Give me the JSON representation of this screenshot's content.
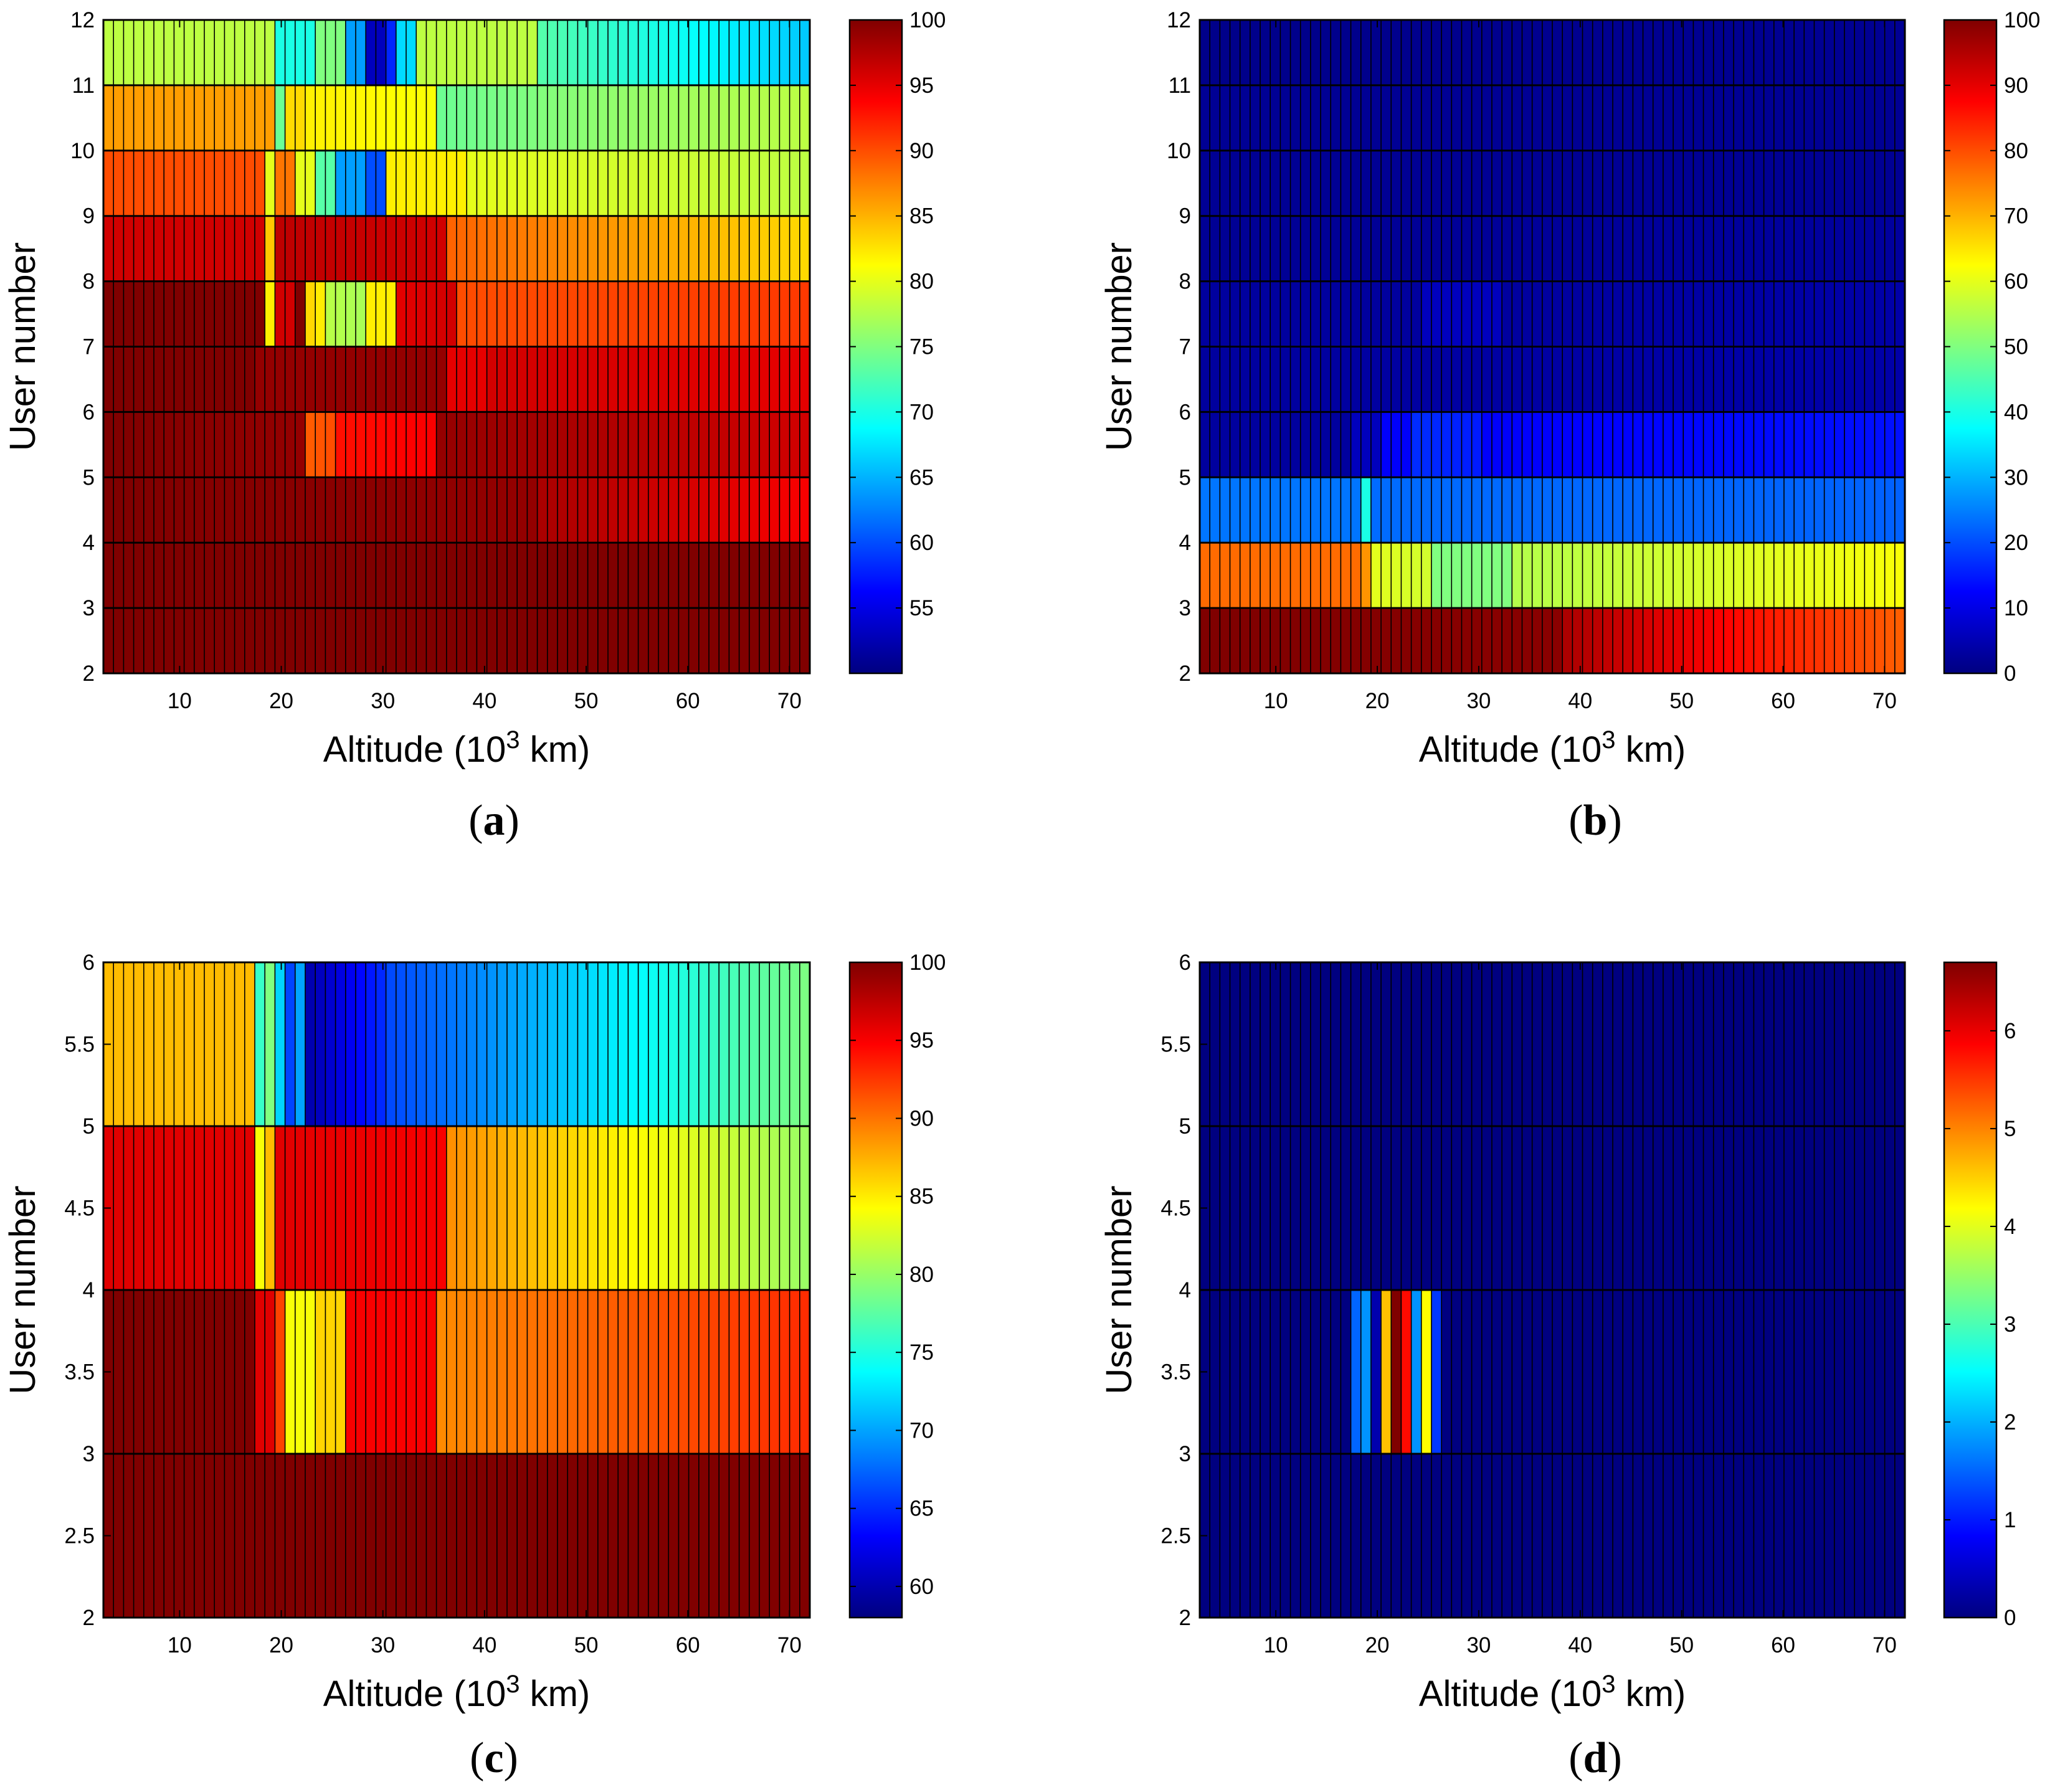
{
  "figure": {
    "caption_parts": {
      "open": "(",
      "close": ")"
    }
  },
  "chart_data": [
    {
      "id": "a",
      "panel_label": "a",
      "type": "heatmap",
      "xlabel": "Altitude (10",
      "xlabel_sup": "3",
      "xlabel_tail": " km)",
      "ylabel": "User number",
      "xlim": [
        2.5,
        72
      ],
      "ylim": [
        2,
        12
      ],
      "xticks": [
        10,
        20,
        30,
        40,
        50,
        60,
        70
      ],
      "yticks": [
        2,
        3,
        4,
        5,
        6,
        7,
        8,
        9,
        10,
        11,
        12
      ],
      "ytick_labels": [
        "2",
        "3",
        "4",
        "5",
        "6",
        "7",
        "8",
        "9",
        "10",
        "11",
        "12"
      ],
      "row_boundaries": [
        2,
        3,
        4,
        5,
        6,
        7,
        8,
        9,
        10,
        11,
        12
      ],
      "n_columns": 70,
      "colorbar": {
        "min": 50,
        "max": 100,
        "ticks": [
          55,
          60,
          65,
          70,
          75,
          80,
          85,
          90,
          95,
          100
        ]
      },
      "rows_segments": [
        [
          [
            2.5,
            72,
            100,
            100
          ]
        ],
        [
          [
            2.5,
            72,
            100,
            100
          ]
        ],
        [
          [
            2.5,
            45,
            100,
            99
          ],
          [
            45,
            72,
            98,
            94
          ]
        ],
        [
          [
            2.5,
            22,
            100,
            99
          ],
          [
            22,
            25,
            89,
            90
          ],
          [
            25,
            35,
            93,
            94
          ],
          [
            35,
            72,
            99,
            96
          ]
        ],
        [
          [
            2.5,
            17,
            100,
            100
          ],
          [
            17,
            36,
            99,
            99
          ],
          [
            36,
            40,
            95,
            95
          ],
          [
            40,
            72,
            96,
            95
          ]
        ],
        [
          [
            2.5,
            18,
            100,
            100
          ],
          [
            18,
            19,
            82,
            82
          ],
          [
            19,
            21,
            96,
            96
          ],
          [
            21,
            22,
            100,
            100
          ],
          [
            22,
            24,
            84,
            82
          ],
          [
            24,
            28,
            78,
            77
          ],
          [
            28,
            31,
            82,
            82
          ],
          [
            31,
            37,
            95,
            96
          ],
          [
            37,
            72,
            90,
            91
          ]
        ],
        [
          [
            2.5,
            18,
            96,
            96
          ],
          [
            18,
            19,
            84,
            84
          ],
          [
            19,
            36,
            97,
            96
          ],
          [
            36,
            72,
            89,
            83
          ]
        ],
        [
          [
            2.5,
            18,
            90,
            90
          ],
          [
            18,
            19,
            80,
            80
          ],
          [
            19,
            21,
            88,
            88
          ],
          [
            21,
            23,
            80,
            80
          ],
          [
            23,
            25,
            73,
            73
          ],
          [
            25,
            28,
            64,
            64
          ],
          [
            28,
            30,
            60,
            60
          ],
          [
            30,
            38,
            82,
            82
          ],
          [
            38,
            72,
            80,
            78
          ]
        ],
        [
          [
            2.5,
            19,
            86,
            86
          ],
          [
            19,
            20,
            74,
            74
          ],
          [
            20,
            22,
            83,
            83
          ],
          [
            22,
            35,
            82,
            81
          ],
          [
            35,
            72,
            74,
            78
          ]
        ],
        [
          [
            2.5,
            19,
            78,
            78
          ],
          [
            19,
            23,
            70,
            70
          ],
          [
            23,
            26,
            75,
            75
          ],
          [
            26,
            28,
            64,
            64
          ],
          [
            28,
            30,
            53,
            53
          ],
          [
            30,
            31,
            58,
            58
          ],
          [
            31,
            33,
            67,
            67
          ],
          [
            33,
            45,
            78,
            78
          ],
          [
            45,
            72,
            73,
            66
          ]
        ]
      ]
    },
    {
      "id": "b",
      "panel_label": "b",
      "type": "heatmap",
      "xlabel": "Altitude (10",
      "xlabel_sup": "3",
      "xlabel_tail": " km)",
      "ylabel": "User number",
      "xlim": [
        2.5,
        72
      ],
      "ylim": [
        2,
        12
      ],
      "xticks": [
        10,
        20,
        30,
        40,
        50,
        60,
        70
      ],
      "yticks": [
        2,
        3,
        4,
        5,
        6,
        7,
        8,
        9,
        10,
        11,
        12
      ],
      "ytick_labels": [
        "2",
        "3",
        "4",
        "5",
        "6",
        "7",
        "8",
        "9",
        "10",
        "11",
        "12"
      ],
      "row_boundaries": [
        2,
        3,
        4,
        5,
        6,
        7,
        8,
        9,
        10,
        11,
        12
      ],
      "n_columns": 70,
      "colorbar": {
        "min": 0,
        "max": 100,
        "ticks": [
          0,
          10,
          20,
          30,
          40,
          50,
          60,
          70,
          80,
          90,
          100
        ]
      },
      "rows_segments": [
        [
          [
            2.5,
            38,
            100,
            99
          ],
          [
            38,
            72,
            96,
            78
          ]
        ],
        [
          [
            2.5,
            18,
            77,
            77
          ],
          [
            18,
            19,
            73,
            73
          ],
          [
            19,
            25,
            60,
            58
          ],
          [
            25,
            33,
            50,
            50
          ],
          [
            33,
            72,
            55,
            62
          ]
        ],
        [
          [
            2.5,
            18,
            24,
            24
          ],
          [
            18,
            19,
            40,
            40
          ],
          [
            19,
            72,
            23,
            22
          ]
        ],
        [
          [
            2.5,
            17,
            3,
            3
          ],
          [
            17,
            20,
            6,
            6
          ],
          [
            20,
            23,
            12,
            12
          ],
          [
            23,
            30,
            17,
            15
          ],
          [
            30,
            72,
            12,
            14
          ]
        ],
        [
          [
            2.5,
            72,
            3,
            4
          ]
        ],
        [
          [
            2.5,
            24,
            3,
            3
          ],
          [
            24,
            32,
            6,
            6
          ],
          [
            32,
            72,
            3,
            4
          ]
        ],
        [
          [
            2.5,
            72,
            2,
            3
          ]
        ],
        [
          [
            2.5,
            72,
            2,
            2
          ]
        ],
        [
          [
            2.5,
            72,
            2,
            2
          ]
        ],
        [
          [
            2.5,
            72,
            1,
            2
          ]
        ]
      ]
    },
    {
      "id": "c",
      "panel_label": "c",
      "type": "heatmap",
      "xlabel": "Altitude (10",
      "xlabel_sup": "3",
      "xlabel_tail": " km)",
      "ylabel": "User number",
      "xlim": [
        2.5,
        72
      ],
      "ylim": [
        2,
        6
      ],
      "xticks": [
        10,
        20,
        30,
        40,
        50,
        60,
        70
      ],
      "yticks": [
        2,
        2.5,
        3,
        3.5,
        4,
        4.5,
        5,
        5.5,
        6
      ],
      "ytick_labels": [
        "2",
        "2.5",
        "3",
        "3.5",
        "4",
        "4.5",
        "5",
        "5.5",
        "6"
      ],
      "row_boundaries": [
        2,
        3,
        4,
        5,
        6
      ],
      "n_columns": 70,
      "colorbar": {
        "min": 58,
        "max": 100,
        "ticks": [
          60,
          65,
          70,
          75,
          80,
          85,
          90,
          95,
          100
        ]
      },
      "rows_segments": [
        [
          [
            2.5,
            72,
            100,
            100
          ]
        ],
        [
          [
            2.5,
            17,
            100,
            100
          ],
          [
            17,
            19,
            96,
            96
          ],
          [
            19,
            20,
            92,
            92
          ],
          [
            20,
            23,
            84,
            84
          ],
          [
            23,
            26,
            86,
            86
          ],
          [
            26,
            35,
            95,
            95
          ],
          [
            35,
            72,
            89,
            93
          ]
        ],
        [
          [
            2.5,
            17,
            96,
            96
          ],
          [
            17,
            18,
            84,
            84
          ],
          [
            18,
            19,
            87,
            87
          ],
          [
            19,
            36,
            96,
            95
          ],
          [
            36,
            72,
            89,
            80
          ]
        ],
        [
          [
            2.5,
            17,
            87,
            87
          ],
          [
            17,
            18,
            76,
            76
          ],
          [
            18,
            19,
            79,
            79
          ],
          [
            19,
            20,
            72,
            72
          ],
          [
            20,
            21,
            66,
            66
          ],
          [
            21,
            22,
            70,
            70
          ],
          [
            22,
            23,
            60,
            60
          ],
          [
            23,
            30,
            60,
            65
          ],
          [
            30,
            72,
            66,
            79
          ]
        ]
      ]
    },
    {
      "id": "d",
      "panel_label": "d",
      "type": "heatmap",
      "xlabel": "Altitude (10",
      "xlabel_sup": "3",
      "xlabel_tail": " km)",
      "ylabel": "User number",
      "xlim": [
        2.5,
        72
      ],
      "ylim": [
        2,
        6
      ],
      "xticks": [
        10,
        20,
        30,
        40,
        50,
        60,
        70
      ],
      "yticks": [
        2,
        2.5,
        3,
        3.5,
        4,
        4.5,
        5,
        5.5,
        6
      ],
      "ytick_labels": [
        "2",
        "2.5",
        "3",
        "3.5",
        "4",
        "4.5",
        "5",
        "5.5",
        "6"
      ],
      "row_boundaries": [
        2,
        3,
        4,
        5,
        6
      ],
      "n_columns": 70,
      "colorbar": {
        "min": 0,
        "max": 6.7,
        "ticks": [
          0,
          1,
          2,
          3,
          4,
          5,
          6
        ]
      },
      "rows_segments": [
        [
          [
            2.5,
            72,
            0,
            0
          ]
        ],
        [
          [
            2.5,
            17,
            0,
            0
          ],
          [
            17,
            18,
            1.5,
            1.5
          ],
          [
            18,
            19,
            1.8,
            1.8
          ],
          [
            19,
            20,
            0.3,
            0.3
          ],
          [
            20,
            21,
            4.6,
            4.6
          ],
          [
            21,
            22,
            6.7,
            6.7
          ],
          [
            22,
            23,
            5.8,
            5.8
          ],
          [
            23,
            24,
            1.8,
            1.8
          ],
          [
            24,
            25,
            4.2,
            4.2
          ],
          [
            25,
            26,
            1.2,
            1.2
          ],
          [
            26,
            72,
            0,
            0
          ]
        ],
        [
          [
            2.5,
            72,
            0,
            0
          ]
        ],
        [
          [
            2.5,
            72,
            0,
            0
          ]
        ]
      ]
    }
  ]
}
